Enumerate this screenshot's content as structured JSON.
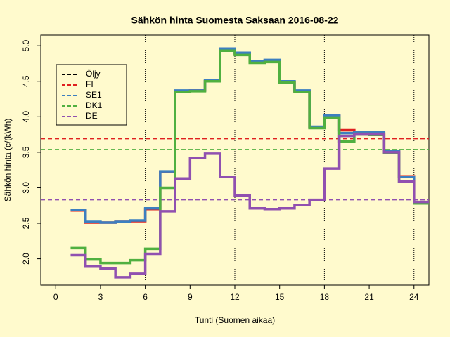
{
  "chart_data": {
    "type": "step",
    "title": "Sähkön hinta Suomesta Saksaan 2016-08-22",
    "xlabel": "Tunti (Suomen aikaa)",
    "ylabel": "Sähkön hinta (c/(kWh)",
    "x": [
      1,
      2,
      3,
      4,
      5,
      6,
      7,
      8,
      9,
      10,
      11,
      12,
      13,
      14,
      15,
      16,
      17,
      18,
      19,
      20,
      21,
      22,
      23,
      24
    ],
    "series": [
      {
        "name": "Öljy",
        "color": "#000000",
        "values": [
          null,
          null,
          null,
          null,
          null,
          null,
          null,
          null,
          null,
          null,
          null,
          null,
          null,
          null,
          null,
          null,
          null,
          null,
          null,
          null,
          null,
          null,
          null,
          null
        ],
        "mean": null
      },
      {
        "name": "FI",
        "color": "#df2020",
        "values": [
          2.68,
          2.51,
          2.51,
          2.52,
          2.53,
          2.7,
          3.22,
          4.36,
          4.37,
          4.5,
          4.95,
          4.89,
          4.77,
          4.79,
          4.49,
          4.36,
          3.85,
          4.01,
          3.81,
          3.77,
          3.77,
          3.51,
          3.16,
          2.79
        ],
        "mean": 3.69
      },
      {
        "name": "SE1",
        "color": "#3c7fc0",
        "values": [
          2.69,
          2.52,
          2.51,
          2.52,
          2.54,
          2.71,
          3.23,
          4.37,
          4.37,
          4.51,
          4.96,
          4.9,
          4.78,
          4.8,
          4.5,
          4.37,
          3.86,
          4.02,
          3.77,
          3.78,
          3.78,
          3.52,
          3.15,
          2.79
        ],
        "mean": null
      },
      {
        "name": "DK1",
        "color": "#50b040",
        "values": [
          2.15,
          1.99,
          1.94,
          1.94,
          1.98,
          2.14,
          3.0,
          4.35,
          4.36,
          4.5,
          4.93,
          4.87,
          4.76,
          4.77,
          4.48,
          4.35,
          3.84,
          3.99,
          3.65,
          3.76,
          3.75,
          3.49,
          3.09,
          2.78
        ],
        "mean": 3.54
      },
      {
        "name": "DE",
        "color": "#9050b0",
        "values": [
          2.05,
          1.89,
          1.86,
          1.74,
          1.79,
          2.07,
          2.67,
          3.13,
          3.42,
          3.48,
          3.15,
          2.89,
          2.71,
          2.7,
          2.71,
          2.76,
          2.83,
          3.27,
          3.73,
          3.76,
          3.76,
          3.5,
          3.09,
          2.8
        ],
        "mean": 2.83
      }
    ],
    "xlim": [
      -1,
      25
    ],
    "ylim": [
      1.63,
      5.15
    ],
    "xticks": [
      0,
      3,
      6,
      9,
      12,
      15,
      18,
      21,
      24
    ],
    "yticks": [
      {
        "value": 2,
        "label": "2.0"
      },
      {
        "value": 2.5,
        "label": "2.5"
      },
      {
        "value": 3,
        "label": "3.0"
      },
      {
        "value": 3.5,
        "label": "3.5"
      },
      {
        "value": 4,
        "label": "4.0"
      },
      {
        "value": 4.5,
        "label": "4.5"
      },
      {
        "value": 5,
        "label": "5.0"
      }
    ],
    "vlines": [
      6,
      12,
      18,
      24
    ],
    "legend": "top-left"
  }
}
